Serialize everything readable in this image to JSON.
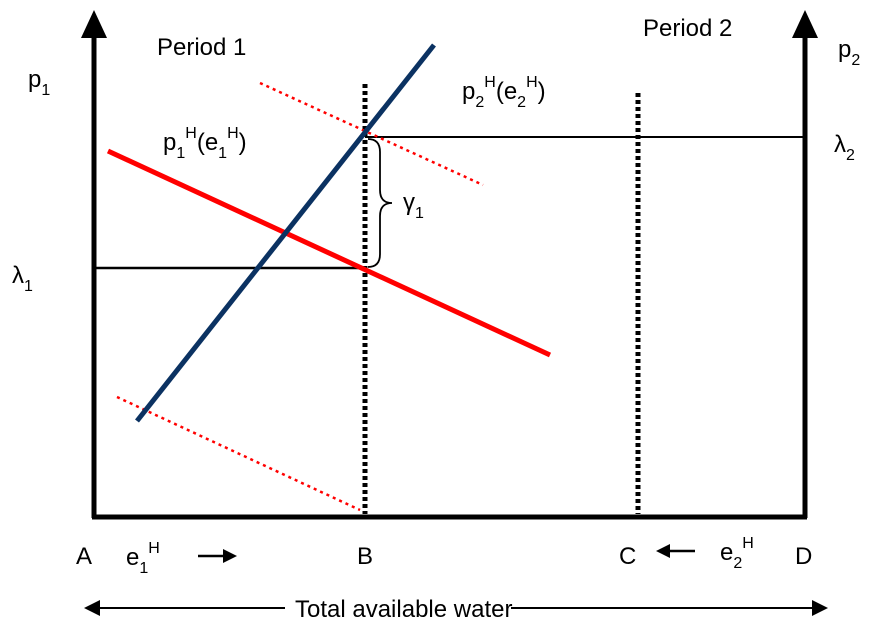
{
  "labels": {
    "period1": "Period 1",
    "period2": "Period 2",
    "p1_base": "p",
    "p1_sub": "1",
    "p2_base": "p",
    "p2_sub": "2",
    "lambda1_base": "λ",
    "lambda1_sub": "1",
    "lambda2_base": "λ",
    "lambda2_sub": "2",
    "gamma1_base": "γ",
    "gamma1_sub": "1",
    "curve1": {
      "p": "p",
      "p_sub": "1",
      "p_sup": "H",
      "open": "(e",
      "e_sub": "1",
      "e_sup": "H",
      "close": ")"
    },
    "curve2": {
      "p": "p",
      "p_sub": "2",
      "p_sup": "H",
      "open": "(e",
      "e_sub": "2",
      "e_sup": "H",
      "close": ")"
    },
    "point_a": "A",
    "point_b": "B",
    "point_c": "C",
    "point_d": "D",
    "e1": {
      "base": "e",
      "sub": "1",
      "sup": "H"
    },
    "e2": {
      "base": "e",
      "sub": "2",
      "sup": "H"
    },
    "total_water": "Total available water"
  },
  "colors": {
    "axis": "#000000",
    "demand_period1": "#ff0000",
    "demand_period2": "#0b3262",
    "dotted_shift": "#ff0000",
    "dotted_divider": "#000000"
  },
  "icons": {
    "e1_arrow": "right-arrow-icon",
    "e2_arrow": "left-arrow-icon",
    "total_water_arrows": "double-headed-arrow-icon"
  }
}
